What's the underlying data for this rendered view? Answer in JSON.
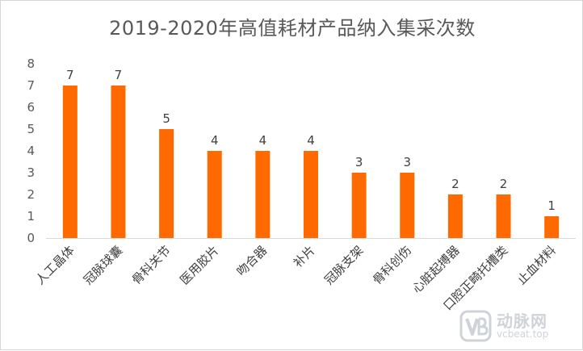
{
  "chart_data": {
    "type": "bar",
    "title": "2019-2020年高值耗材产品纳入集采次数",
    "categories": [
      "人工晶体",
      "冠脉球囊",
      "骨科关节",
      "医用胶片",
      "吻合器",
      "补片",
      "冠脉支架",
      "骨科创伤",
      "心脏起搏器",
      "口腔正畸托槽类",
      "止血材料"
    ],
    "values": [
      7,
      7,
      5,
      4,
      4,
      4,
      3,
      3,
      2,
      2,
      1
    ],
    "ylim": [
      0,
      8
    ],
    "yticks": [
      0,
      1,
      2,
      3,
      4,
      5,
      6,
      7,
      8
    ],
    "grid": false,
    "legend": "none",
    "bar_color": "#ff6a00",
    "data_labels": true
  },
  "watermark": {
    "logo_icon": "vb-logo-icon",
    "name": "动脉网",
    "url": "vcbeat.top"
  },
  "colors": {
    "bar": "#ff6a00",
    "text": "#595959",
    "axis": "#d9d9d9",
    "watermark": "#cfd3d8"
  }
}
